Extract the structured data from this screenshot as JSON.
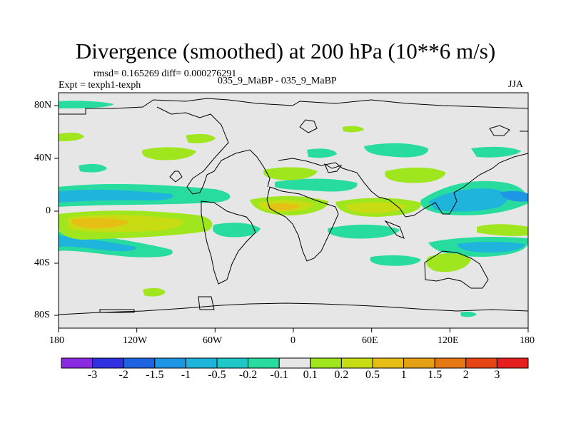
{
  "title": "Divergence (smoothed) at 200 hPa (10**6 m/s)",
  "stats_line": "rmsd= 0.165269 diff= 0.000276291",
  "experiment_line": "Expt = texph1-texph",
  "comparison_line": "035_9_MaBP - 035_9_MaBP",
  "season": "JJA",
  "axes": {
    "lon_ticks": [
      "180",
      "120W",
      "60W",
      "0",
      "60E",
      "120E",
      "180"
    ],
    "lat_ticks": [
      "80N",
      "40N",
      "0",
      "40S",
      "80S"
    ]
  },
  "colorbar": {
    "labels": [
      "-3",
      "-2",
      "-1.5",
      "-1",
      "-0.5",
      "-0.2",
      "-0.1",
      "0.1",
      "0.2",
      "0.5",
      "1",
      "1.5",
      "2",
      "3"
    ],
    "colors": [
      "#8a2be2",
      "#3030e0",
      "#1e64e0",
      "#1e96e6",
      "#1eb4dc",
      "#1ec8c8",
      "#28dca0",
      "#e6e6e6",
      "#a0e61e",
      "#c8dc14",
      "#e6be14",
      "#e6a014",
      "#e67814",
      "#e64614",
      "#e61e1e"
    ]
  },
  "colors": {
    "background": "#e6e6e6",
    "coast": "#000000"
  }
}
